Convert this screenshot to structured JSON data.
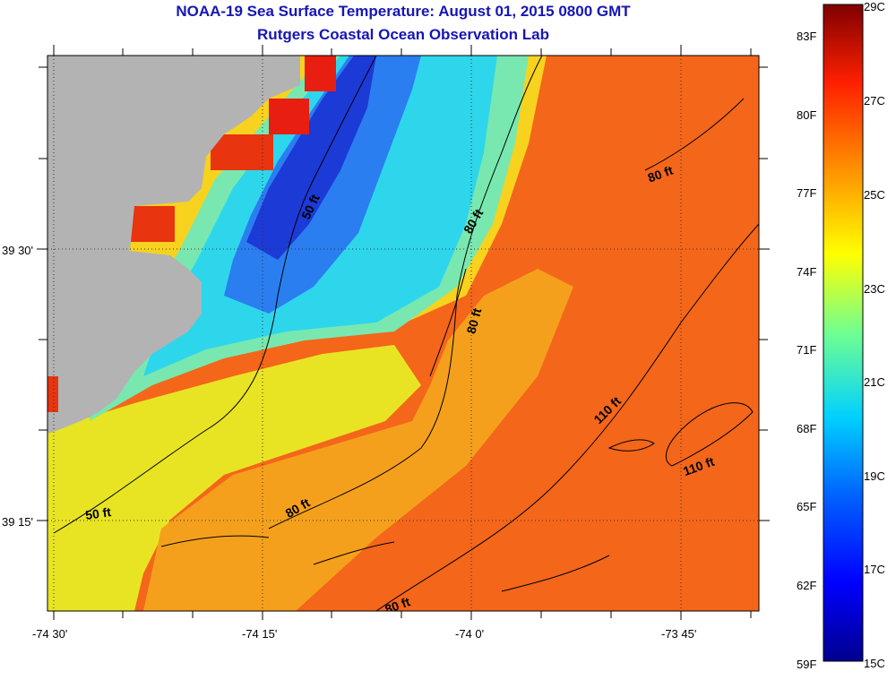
{
  "title": {
    "line1": "NOAA-19 Sea Surface Temperature:  August 01, 2015 0800 GMT",
    "line2": "Rutgers Coastal Ocean Observation Lab"
  },
  "axes": {
    "x_ticks": [
      {
        "label": "-74 30'",
        "lon": -74.5
      },
      {
        "label": "-74 15'",
        "lon": -74.25
      },
      {
        "label": "-74 0'",
        "lon": -74.0
      },
      {
        "label": "-73 45'",
        "lon": -73.75
      }
    ],
    "y_ticks": [
      {
        "label": "39 30'",
        "lat": 39.5
      },
      {
        "label": "39 15'",
        "lat": 39.25
      }
    ]
  },
  "depth_labels": [
    "50 ft",
    "50 ft",
    "80 ft",
    "80 ft",
    "80 ft",
    "80 ft",
    "80 ft",
    "110 ft",
    "110 ft"
  ],
  "colorbar": {
    "celsius": [
      "29C",
      "27C",
      "25C",
      "23C",
      "21C",
      "19C",
      "17C",
      "15C"
    ],
    "fahrenheit": [
      "83F",
      "80F",
      "77F",
      "74F",
      "71F",
      "68F",
      "65F",
      "62F",
      "59F"
    ]
  },
  "colors": {
    "land": "#b3b3b3",
    "title": "#1616b4",
    "warm": "#f35a14",
    "cold": "#1c3ad6"
  }
}
